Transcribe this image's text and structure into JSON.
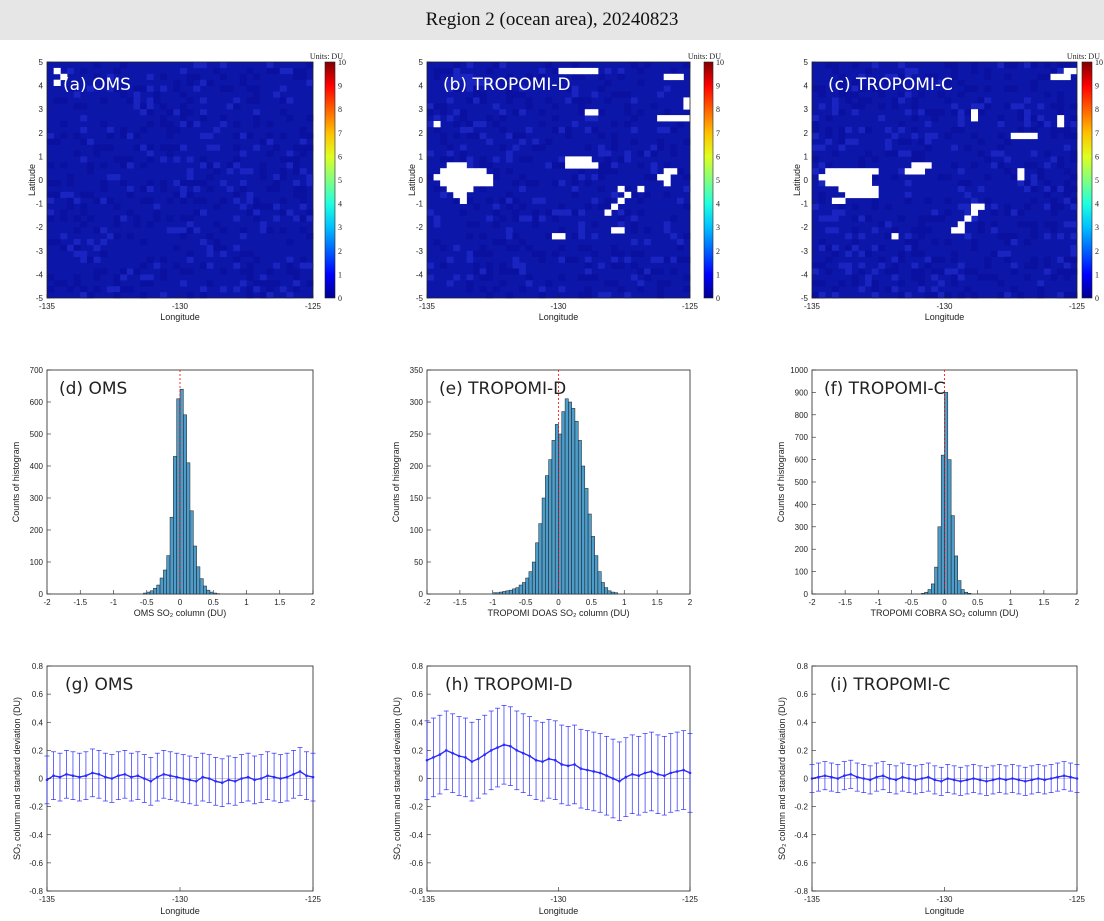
{
  "figure_title": "Region 2 (ocean area), 20240823",
  "colors": {
    "map_fill": "#0c16a8",
    "hist_bar": "#4d9cc9",
    "line_series": "#2b2bff",
    "zero_line": "#ff0000"
  },
  "colorbar": {
    "units": "Units: DU",
    "ticks": [
      "0",
      "1",
      "2",
      "3",
      "4",
      "5",
      "6",
      "7",
      "8",
      "9",
      "10"
    ]
  },
  "chart_data": [
    {
      "id": "a",
      "type": "heatmap",
      "label": "(a) OMS",
      "xlabel": "Longitude",
      "ylabel": "Latitude",
      "xlim": [
        -135,
        -125
      ],
      "ylim": [
        -5,
        5
      ],
      "xticks": [
        "-135",
        "-130",
        "-125"
      ],
      "yticks": [
        "-5",
        "-4",
        "-3",
        "-2",
        "-1",
        "0",
        "1",
        "2",
        "3",
        "4",
        "5"
      ],
      "units": "Units: DU",
      "clim": [
        0,
        10
      ],
      "missing_cells": [
        [
          2,
          2
        ],
        [
          1,
          3
        ],
        [
          1,
          1
        ]
      ]
    },
    {
      "id": "b",
      "type": "heatmap",
      "label": "(b) TROPOMI-D",
      "xlabel": "Longitude",
      "ylabel": "Latitude",
      "xlim": [
        -135,
        -125
      ],
      "ylim": [
        -5,
        5
      ],
      "xticks": [
        "-135",
        "-130",
        "-125"
      ],
      "yticks": [
        "-5",
        "-4",
        "-3",
        "-2",
        "-1",
        "0",
        "1",
        "2",
        "3",
        "4",
        "5"
      ],
      "units": "Units: DU",
      "clim": [
        0,
        10
      ],
      "missing_cells": [
        [
          3,
          17
        ],
        [
          4,
          17
        ],
        [
          5,
          17
        ],
        [
          2,
          18
        ],
        [
          3,
          18
        ],
        [
          4,
          18
        ],
        [
          5,
          18
        ],
        [
          6,
          18
        ],
        [
          7,
          18
        ],
        [
          8,
          18
        ],
        [
          1,
          19
        ],
        [
          2,
          19
        ],
        [
          3,
          19
        ],
        [
          4,
          19
        ],
        [
          5,
          19
        ],
        [
          6,
          19
        ],
        [
          7,
          19
        ],
        [
          8,
          19
        ],
        [
          9,
          19
        ],
        [
          2,
          20
        ],
        [
          3,
          20
        ],
        [
          4,
          20
        ],
        [
          5,
          20
        ],
        [
          6,
          20
        ],
        [
          7,
          20
        ],
        [
          8,
          20
        ],
        [
          9,
          20
        ],
        [
          3,
          21
        ],
        [
          4,
          21
        ],
        [
          5,
          21
        ],
        [
          6,
          21
        ],
        [
          4,
          22
        ],
        [
          5,
          22
        ],
        [
          5,
          23
        ],
        [
          21,
          16
        ],
        [
          22,
          16
        ],
        [
          23,
          16
        ],
        [
          24,
          16
        ],
        [
          21,
          17
        ],
        [
          22,
          17
        ],
        [
          23,
          17
        ],
        [
          24,
          17
        ],
        [
          25,
          17
        ],
        [
          36,
          18
        ],
        [
          37,
          18
        ],
        [
          35,
          19
        ],
        [
          36,
          19
        ],
        [
          32,
          21
        ],
        [
          36,
          20
        ],
        [
          29,
          21
        ],
        [
          30,
          22
        ],
        [
          29,
          23
        ],
        [
          28,
          24
        ],
        [
          27,
          25
        ],
        [
          39,
          6
        ],
        [
          40,
          6
        ],
        [
          39,
          7
        ],
        [
          40,
          8
        ],
        [
          41,
          8
        ],
        [
          35,
          9
        ],
        [
          36,
          9
        ],
        [
          37,
          9
        ],
        [
          38,
          9
        ],
        [
          39,
          9
        ],
        [
          24,
          8
        ],
        [
          25,
          8
        ],
        [
          45,
          1
        ],
        [
          46,
          1
        ],
        [
          47,
          1
        ],
        [
          48,
          1
        ],
        [
          49,
          1
        ],
        [
          50,
          1
        ],
        [
          48,
          2
        ],
        [
          49,
          2
        ],
        [
          40,
          2
        ],
        [
          20,
          1
        ],
        [
          21,
          1
        ],
        [
          22,
          1
        ],
        [
          23,
          1
        ],
        [
          24,
          1
        ],
        [
          25,
          1
        ],
        [
          36,
          2
        ],
        [
          37,
          2
        ],
        [
          38,
          2
        ],
        [
          1,
          10
        ],
        [
          28,
          28
        ],
        [
          29,
          28
        ],
        [
          19,
          29
        ],
        [
          20,
          29
        ]
      ]
    },
    {
      "id": "c",
      "type": "heatmap",
      "label": "(c) TROPOMI-C",
      "xlabel": "Longitude",
      "ylabel": "Latitude",
      "xlim": [
        -135,
        -125
      ],
      "ylim": [
        -5,
        5
      ],
      "xticks": [
        "-135",
        "-130",
        "-125"
      ],
      "yticks": [
        "-5",
        "-4",
        "-3",
        "-2",
        "-1",
        "0",
        "1",
        "2",
        "3",
        "4",
        "5"
      ],
      "units": "Units: DU",
      "clim": [
        0,
        10
      ],
      "missing_cells": [
        [
          2,
          18
        ],
        [
          3,
          18
        ],
        [
          4,
          18
        ],
        [
          5,
          18
        ],
        [
          6,
          18
        ],
        [
          7,
          18
        ],
        [
          8,
          18
        ],
        [
          9,
          18
        ],
        [
          1,
          19
        ],
        [
          2,
          19
        ],
        [
          3,
          19
        ],
        [
          4,
          19
        ],
        [
          5,
          19
        ],
        [
          6,
          19
        ],
        [
          7,
          19
        ],
        [
          8,
          19
        ],
        [
          2,
          20
        ],
        [
          3,
          20
        ],
        [
          4,
          20
        ],
        [
          5,
          20
        ],
        [
          6,
          20
        ],
        [
          7,
          20
        ],
        [
          8,
          20
        ],
        [
          4,
          21
        ],
        [
          5,
          21
        ],
        [
          6,
          21
        ],
        [
          7,
          21
        ],
        [
          8,
          21
        ],
        [
          9,
          21
        ],
        [
          5,
          22
        ],
        [
          6,
          22
        ],
        [
          7,
          22
        ],
        [
          8,
          22
        ],
        [
          9,
          22
        ],
        [
          3,
          23
        ],
        [
          4,
          23
        ],
        [
          15,
          17
        ],
        [
          16,
          17
        ],
        [
          17,
          17
        ],
        [
          14,
          18
        ],
        [
          15,
          18
        ],
        [
          16,
          18
        ],
        [
          31,
          18
        ],
        [
          31,
          19
        ],
        [
          24,
          24
        ],
        [
          25,
          24
        ],
        [
          24,
          25
        ],
        [
          23,
          26
        ],
        [
          22,
          27
        ],
        [
          30,
          12
        ],
        [
          31,
          12
        ],
        [
          32,
          12
        ],
        [
          33,
          12
        ],
        [
          37,
          9
        ],
        [
          37,
          10
        ],
        [
          24,
          8
        ],
        [
          24,
          9
        ],
        [
          38,
          1
        ],
        [
          39,
          1
        ],
        [
          40,
          1
        ],
        [
          41,
          1
        ],
        [
          36,
          2
        ],
        [
          37,
          2
        ],
        [
          38,
          2
        ],
        [
          21,
          28
        ],
        [
          22,
          28
        ],
        [
          12,
          29
        ]
      ]
    },
    {
      "id": "d",
      "type": "bar",
      "label": "(d) OMS",
      "xlabel": "OMS SO₂ column (DU)",
      "ylabel": "Counts of histogram",
      "xlim": [
        -2,
        2
      ],
      "ylim": [
        0,
        700
      ],
      "xticks": [
        "-2",
        "-1.5",
        "-1",
        "-0.5",
        "0",
        "0.5",
        "1",
        "1.5",
        "2"
      ],
      "yticks": [
        "0",
        "100",
        "200",
        "300",
        "400",
        "500",
        "600",
        "700"
      ],
      "bins": [
        -0.55,
        -0.5,
        -0.45,
        -0.4,
        -0.35,
        -0.3,
        -0.25,
        -0.2,
        -0.15,
        -0.1,
        -0.05,
        0,
        0.05,
        0.1,
        0.15,
        0.2,
        0.25,
        0.3,
        0.35,
        0.4,
        0.45,
        0.5,
        0.55
      ],
      "bin_width": 0.05,
      "values": [
        3,
        6,
        10,
        18,
        28,
        50,
        75,
        120,
        240,
        430,
        610,
        640,
        560,
        410,
        260,
        150,
        85,
        48,
        25,
        12,
        6,
        3,
        1
      ]
    },
    {
      "id": "e",
      "type": "bar",
      "label": "(e) TROPOMI-D",
      "xlabel": "TROPOMI DOAS SO₂ column (DU)",
      "ylabel": "Counts of histogram",
      "xlim": [
        -2,
        2
      ],
      "ylim": [
        0,
        350
      ],
      "xticks": [
        "-2",
        "-1.5",
        "-1",
        "-0.5",
        "0",
        "0.5",
        "1",
        "1.5",
        "2"
      ],
      "yticks": [
        "0",
        "50",
        "100",
        "150",
        "200",
        "250",
        "300",
        "350"
      ],
      "bins": [
        -1.0,
        -0.95,
        -0.9,
        -0.85,
        -0.8,
        -0.75,
        -0.7,
        -0.65,
        -0.6,
        -0.55,
        -0.5,
        -0.45,
        -0.4,
        -0.35,
        -0.3,
        -0.25,
        -0.2,
        -0.15,
        -0.1,
        -0.05,
        0,
        0.05,
        0.1,
        0.15,
        0.2,
        0.25,
        0.3,
        0.35,
        0.4,
        0.45,
        0.5,
        0.55,
        0.6,
        0.65,
        0.7,
        0.75,
        0.8,
        0.85
      ],
      "bin_width": 0.05,
      "values": [
        2,
        2,
        3,
        4,
        5,
        6,
        8,
        10,
        14,
        18,
        25,
        35,
        50,
        80,
        110,
        150,
        185,
        210,
        240,
        265,
        250,
        285,
        305,
        300,
        290,
        270,
        240,
        200,
        165,
        125,
        90,
        60,
        35,
        18,
        10,
        5,
        3,
        2
      ]
    },
    {
      "id": "f",
      "type": "bar",
      "label": "(f) TROPOMI-C",
      "xlabel": "TROPOMI COBRA SO₂ column (DU)",
      "ylabel": "Counts of histogram",
      "xlim": [
        -2,
        2
      ],
      "ylim": [
        0,
        1000
      ],
      "xticks": [
        "-2",
        "-1.5",
        "-1",
        "-0.5",
        "0",
        "0.5",
        "1",
        "1.5",
        "2"
      ],
      "yticks": [
        "0",
        "100",
        "200",
        "300",
        "400",
        "500",
        "600",
        "700",
        "800",
        "900",
        "1000"
      ],
      "bins": [
        -0.35,
        -0.3,
        -0.25,
        -0.2,
        -0.15,
        -0.1,
        -0.05,
        0,
        0.05,
        0.1,
        0.15,
        0.2,
        0.25,
        0.3,
        0.35
      ],
      "bin_width": 0.05,
      "values": [
        3,
        8,
        20,
        45,
        120,
        300,
        620,
        900,
        600,
        350,
        170,
        60,
        20,
        8,
        3
      ]
    },
    {
      "id": "g",
      "type": "line",
      "label": "(g) OMS",
      "xlabel": "Longitude",
      "ylabel": "SO₂ column and standard deviation (DU)",
      "xlim": [
        -135,
        -125
      ],
      "ylim": [
        -0.8,
        0.8
      ],
      "xticks": [
        "-135",
        "-130",
        "-125"
      ],
      "yticks": [
        "-0.8",
        "-0.6",
        "-0.4",
        "-0.2",
        "0",
        "0.2",
        "0.4",
        "0.6",
        "0.8"
      ],
      "mean": [
        -0.01,
        0.02,
        0.01,
        0.03,
        0.02,
        0.01,
        0.02,
        0.04,
        0.03,
        0.01,
        0.0,
        0.02,
        0.03,
        0.01,
        0.02,
        0.0,
        -0.02,
        0.01,
        0.03,
        0.02,
        0.01,
        0.0,
        -0.01,
        -0.02,
        0.01,
        0.0,
        -0.02,
        -0.03,
        -0.01,
        -0.02,
        0.0,
        0.01,
        -0.01,
        0.0,
        0.02,
        0.01,
        0.0,
        0.01,
        0.03,
        0.05,
        0.02,
        0.01
      ],
      "std": 0.17
    },
    {
      "id": "h",
      "type": "line",
      "label": "(h) TROPOMI-D",
      "xlabel": "Longitude",
      "ylabel": "SO₂ column and standard deviation (DU)",
      "xlim": [
        -135,
        -125
      ],
      "ylim": [
        -0.8,
        0.8
      ],
      "xticks": [
        "-135",
        "-130",
        "-125"
      ],
      "yticks": [
        "-0.8",
        "-0.6",
        "-0.4",
        "-0.2",
        "0",
        "0.2",
        "0.4",
        "0.6",
        "0.8"
      ],
      "mean": [
        0.13,
        0.15,
        0.17,
        0.2,
        0.18,
        0.16,
        0.15,
        0.12,
        0.14,
        0.17,
        0.2,
        0.22,
        0.24,
        0.23,
        0.2,
        0.18,
        0.16,
        0.13,
        0.12,
        0.14,
        0.13,
        0.1,
        0.09,
        0.1,
        0.07,
        0.06,
        0.05,
        0.04,
        0.02,
        0.0,
        -0.02,
        0.01,
        0.03,
        0.02,
        0.04,
        0.05,
        0.03,
        0.02,
        0.04,
        0.05,
        0.06,
        0.04
      ],
      "std": 0.28
    },
    {
      "id": "i",
      "type": "line",
      "label": "(i) TROPOMI-C",
      "xlabel": "Longitude",
      "ylabel": "SO₂ column and standard deviation (DU)",
      "xlim": [
        -135,
        -125
      ],
      "ylim": [
        -0.8,
        0.8
      ],
      "xticks": [
        "-135",
        "-130",
        "-125"
      ],
      "yticks": [
        "-0.8",
        "-0.6",
        "-0.4",
        "-0.2",
        "0",
        "0.2",
        "0.4",
        "0.6",
        "0.8"
      ],
      "mean": [
        0.0,
        0.01,
        0.02,
        0.01,
        0.0,
        0.02,
        0.03,
        0.01,
        0.0,
        -0.01,
        0.01,
        0.02,
        0.0,
        -0.01,
        0.01,
        0.0,
        -0.01,
        0.0,
        0.01,
        -0.01,
        -0.02,
        0.0,
        -0.01,
        -0.02,
        -0.01,
        0.0,
        -0.01,
        -0.02,
        -0.01,
        0.0,
        -0.01,
        0.0,
        -0.01,
        -0.02,
        -0.01,
        0.0,
        -0.01,
        0.0,
        0.01,
        0.02,
        0.01,
        0.0
      ],
      "std": 0.1
    }
  ]
}
